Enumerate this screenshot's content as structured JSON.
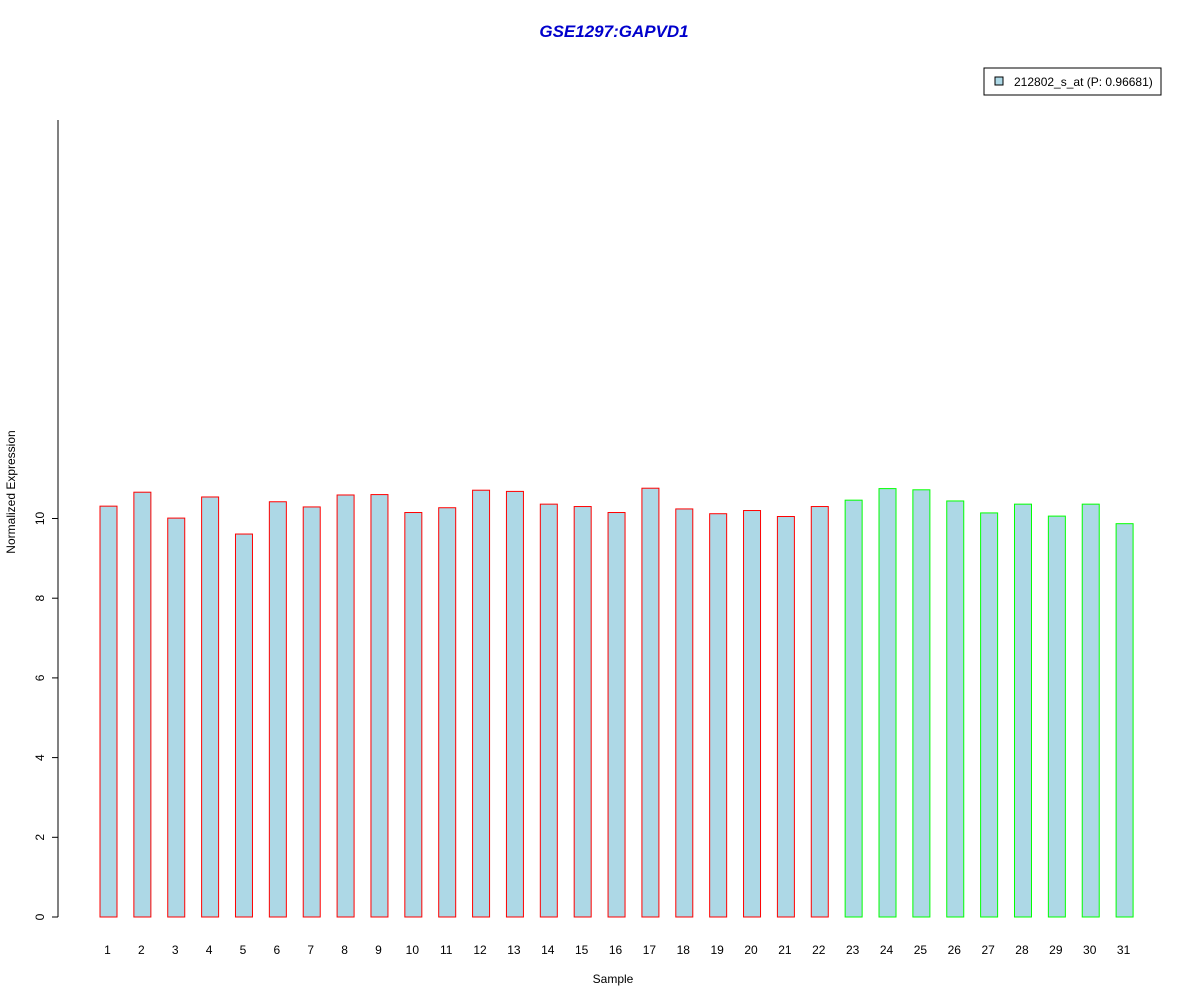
{
  "chart_data": {
    "type": "bar",
    "title": "GSE1297:GAPVD1",
    "xlabel": "Sample",
    "ylabel": "Normalized Expression",
    "ylim": [
      0,
      10.85
    ],
    "yticks": [
      "0",
      "2",
      "4",
      "6",
      "8",
      "10"
    ],
    "categories": [
      "1",
      "2",
      "3",
      "4",
      "5",
      "6",
      "7",
      "8",
      "9",
      "10",
      "11",
      "12",
      "13",
      "14",
      "15",
      "16",
      "17",
      "18",
      "19",
      "20",
      "21",
      "22",
      "23",
      "24",
      "25",
      "26",
      "27",
      "28",
      "29",
      "30",
      "31"
    ],
    "values": [
      10.31,
      10.66,
      10.01,
      10.54,
      9.61,
      10.42,
      10.29,
      10.59,
      10.6,
      10.15,
      10.27,
      10.71,
      10.68,
      10.36,
      10.3,
      10.15,
      10.76,
      10.24,
      10.12,
      10.2,
      10.05,
      10.3,
      10.46,
      10.75,
      10.72,
      10.44,
      10.14,
      10.36,
      10.06,
      10.36,
      9.87
    ],
    "groups": [
      1,
      1,
      1,
      1,
      1,
      1,
      1,
      1,
      1,
      1,
      1,
      1,
      1,
      1,
      1,
      1,
      1,
      1,
      1,
      1,
      1,
      1,
      2,
      2,
      2,
      2,
      2,
      2,
      2,
      2,
      2
    ],
    "series": [
      {
        "name": "212802_s_at (P: 0.96681)"
      }
    ],
    "legend": {
      "label": "212802_s_at (P: 0.96681)",
      "position": "top-right"
    },
    "grid": false,
    "colors": {
      "fill": "#add8e6",
      "group1_border": "#ff0000",
      "group2_border": "#00ff00",
      "title": "#0000cc"
    }
  }
}
